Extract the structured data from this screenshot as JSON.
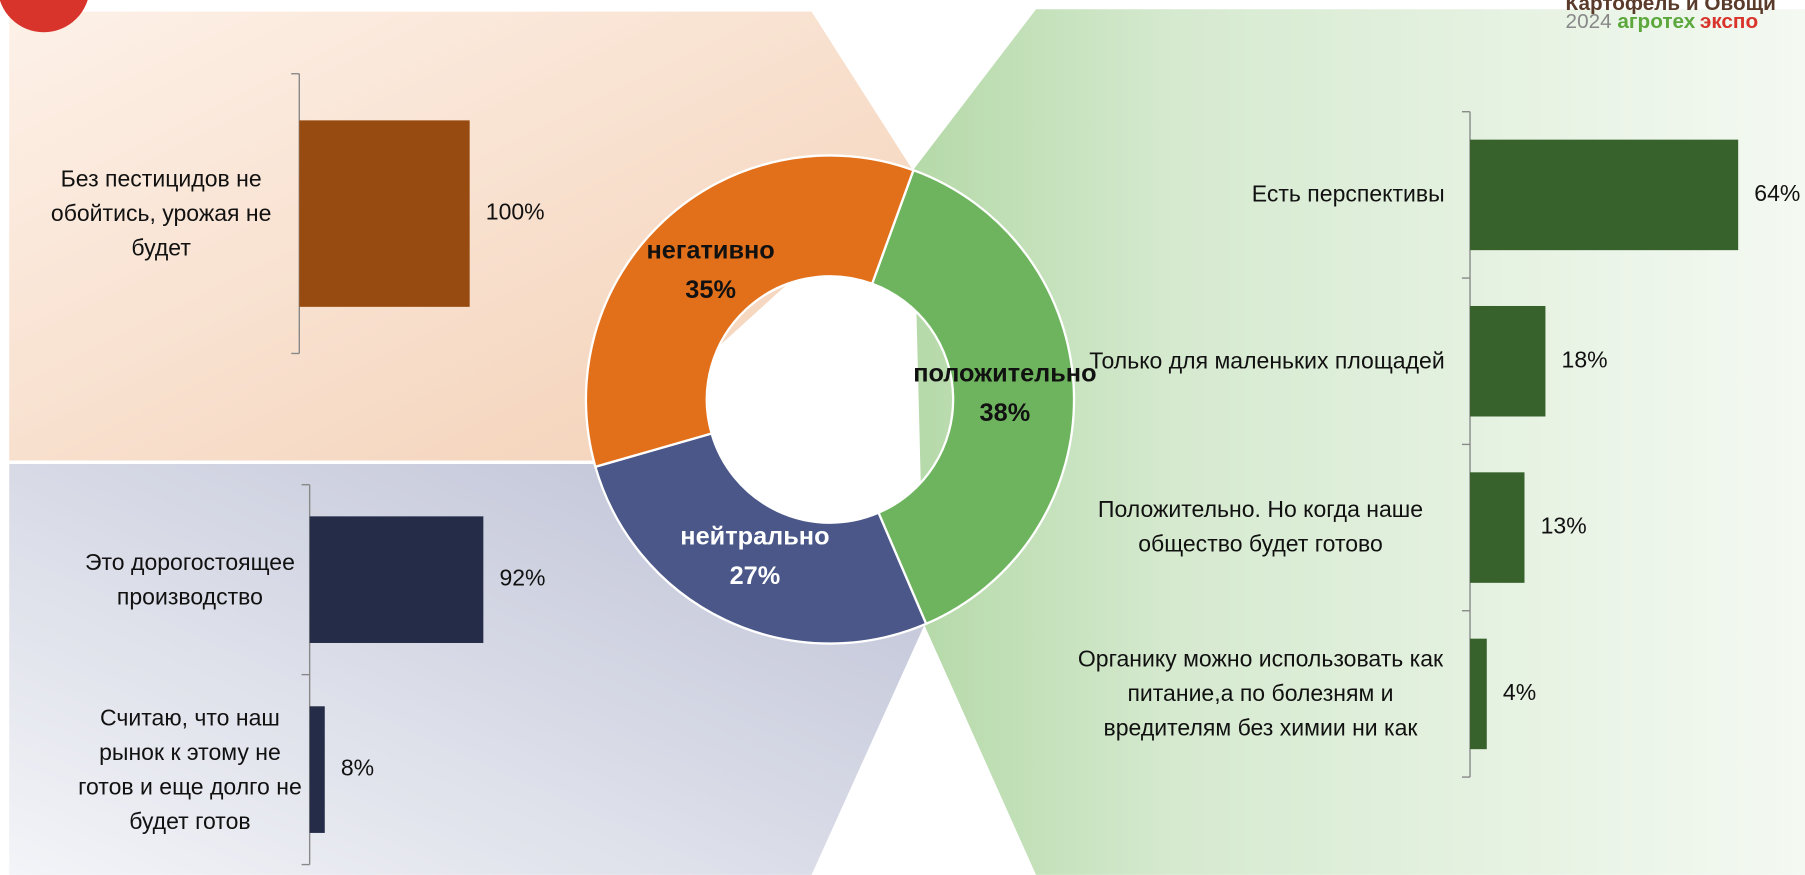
{
  "logo": {
    "line1": "Картофель и Овощи",
    "year": "2024",
    "brand1": "агротех",
    "brand2": "экспо"
  },
  "chart_data": [
    {
      "type": "donut",
      "categories": [
        "положительно",
        "нейтрально",
        "негативно"
      ],
      "values": [
        38,
        27,
        35
      ],
      "value_labels": [
        "38%",
        "27%",
        "35%"
      ],
      "colors": [
        "#6eb45e",
        "#4a5788",
        "#e26f1a"
      ]
    },
    {
      "type": "hbar",
      "categories": [
        "Без пестицидов не обойтись, урожая не будет"
      ],
      "values": [
        100
      ],
      "value_labels": [
        "100%"
      ],
      "color": "#974b10",
      "xlim": [
        0,
        100
      ]
    },
    {
      "type": "hbar",
      "categories": [
        "Это дорогостоящее производство",
        "Считаю, что наш рынок к этому не готов и еще долго не будет готов"
      ],
      "values": [
        92,
        8
      ],
      "value_labels": [
        "92%",
        "8%"
      ],
      "color": "#252c47",
      "xlim": [
        0,
        100
      ]
    },
    {
      "type": "hbar",
      "categories": [
        "Есть перспективы",
        "Только для маленьких площадей",
        "Положительно. Но когда наше общество будет готово",
        "Органику можно использовать как питание,а по болезням и вредителям без химии ни как"
      ],
      "values": [
        64,
        18,
        13,
        4
      ],
      "value_labels": [
        "64%",
        "18%",
        "13%",
        "4%"
      ],
      "color": "#38622c",
      "xlim": [
        0,
        100
      ]
    }
  ]
}
